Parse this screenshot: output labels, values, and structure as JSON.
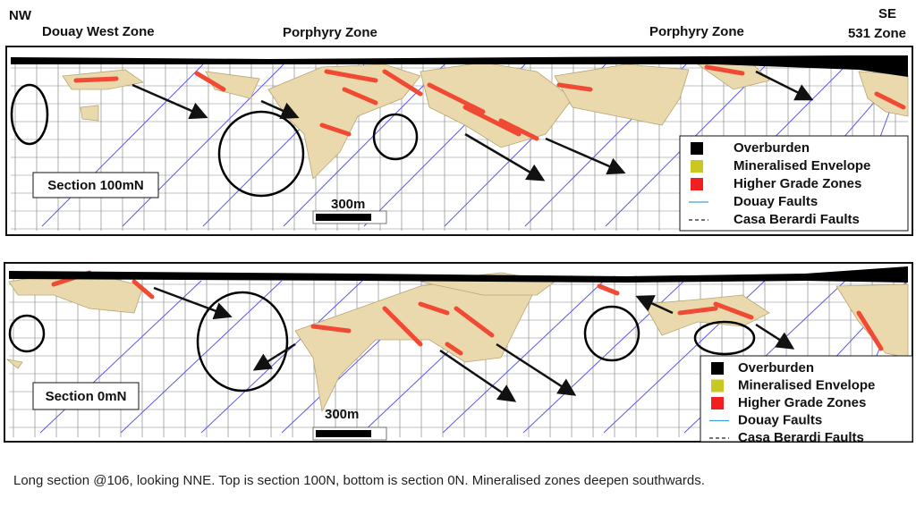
{
  "header": {
    "nw": "NW",
    "se": "SE",
    "zones": [
      "Douay West Zone",
      "Porphyry Zone",
      "Porphyry Zone",
      "531 Zone"
    ]
  },
  "panels": [
    {
      "section": "Section 100mN",
      "scale": "300m",
      "legend": [
        "Overburden",
        "Mineralised Envelope",
        "Higher Grade Zones",
        "Douay Faults",
        "Casa Berardi Faults"
      ]
    },
    {
      "section": "Section 0mN",
      "scale": "300m",
      "legend": [
        "Overburden",
        "Mineralised Envelope",
        "Higher Grade Zones",
        "Douay Faults",
        "Casa Berardi Faults"
      ]
    }
  ],
  "caption": "Long section @106,  looking NNE. Top is section 100N,  bottom is  section 0N. Mineralised zones deepen southwards."
}
